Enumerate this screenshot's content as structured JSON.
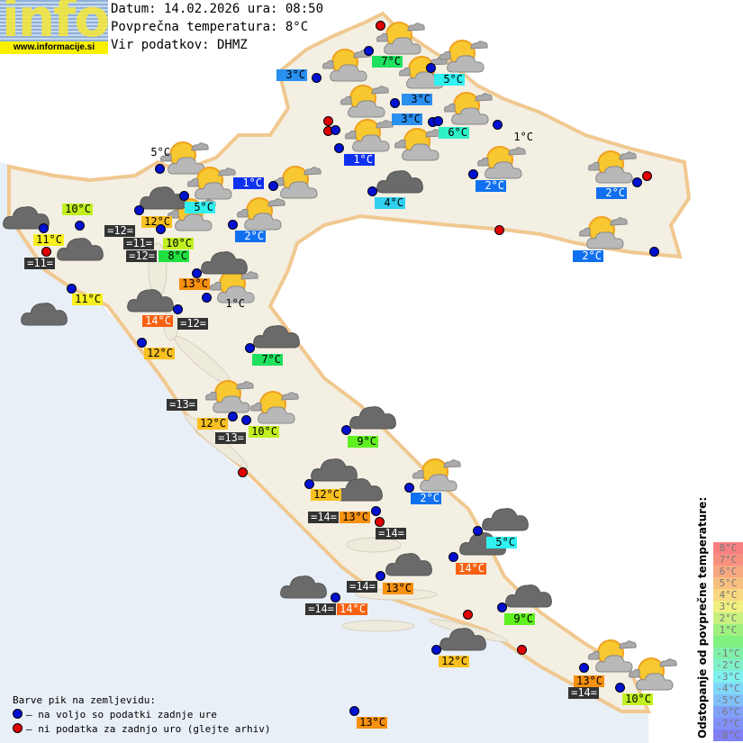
{
  "logo": {
    "word": "info",
    "url": "www.informacije.si"
  },
  "header": {
    "date_line": "Datum: 14.02.2026 ura: 08:50",
    "avg_temp_line": "Povprečna temperatura: 8°C",
    "source_line": "Vir podatkov: DHMZ"
  },
  "colors": {
    "map_land": "#f3efe3",
    "sea": "#e6eef6",
    "border": "#f0c890",
    "dot_available": "#0010d0",
    "dot_missing": "#e00000",
    "sea_temp_bg": "#333333"
  },
  "dots": [
    "missing",
    "available",
    "available",
    "available",
    "available",
    "available",
    "available",
    "missing",
    "missing",
    "available",
    "available",
    "available",
    "available",
    "available",
    "available",
    "available",
    "missing",
    "available",
    "missing",
    "available",
    "available",
    "available",
    "available",
    "available",
    "available",
    "available",
    "missing",
    "available",
    "available",
    "available",
    "available",
    "available",
    "available",
    "available",
    "available",
    "available",
    "missing",
    "available",
    "available",
    "available",
    "missing",
    "available",
    "available",
    "available",
    "available",
    "available",
    "missing",
    "missing",
    "available",
    "available",
    "available",
    "available"
  ],
  "labels": [
    {
      "text": "7°C",
      "bg": "#20e060"
    },
    {
      "text": "3°C",
      "bg": "#2a90f0"
    },
    {
      "text": "5°C",
      "bg": "#30f0f0"
    },
    {
      "text": "3°C",
      "bg": "#2a90f0"
    },
    {
      "text": "3°C",
      "bg": "#2a90f0"
    },
    {
      "text": "6°C",
      "bg": "#30f0c8"
    },
    {
      "text": "1°C",
      "bg": "#1030f0"
    },
    {
      "text": "1°C",
      "bg": ""
    },
    {
      "text": "1°C",
      "bg": "#1030f0"
    },
    {
      "text": "4°C",
      "bg": "#30d0f0"
    },
    {
      "text": "2°C",
      "bg": "#1070f0"
    },
    {
      "text": "2°C",
      "bg": "#1070f0"
    },
    {
      "text": "2°C",
      "bg": "#1070f0"
    },
    {
      "text": "2°C",
      "bg": "#1070f0"
    },
    {
      "text": "5°C",
      "bg": ""
    },
    {
      "text": "5°C",
      "bg": "#30f0f0"
    },
    {
      "text": "12°C",
      "bg": "#f8c020"
    },
    {
      "text": "=12=",
      "bg": "#333333"
    },
    {
      "text": "10°C",
      "bg": "#c0f020"
    },
    {
      "text": "10°C",
      "bg": "#c0f020"
    },
    {
      "text": "=11=",
      "bg": "#333333"
    },
    {
      "text": "8°C",
      "bg": "#20e040"
    },
    {
      "text": "=12=",
      "bg": "#333333"
    },
    {
      "text": "11°C",
      "bg": "#f8f020"
    },
    {
      "text": "=11=",
      "bg": "#333333"
    },
    {
      "text": "11°C",
      "bg": "#f8f020"
    },
    {
      "text": "13°C",
      "bg": "#f89010"
    },
    {
      "text": "1°C",
      "bg": ""
    },
    {
      "text": "14°C",
      "bg": "#f86010"
    },
    {
      "text": "=12=",
      "bg": "#333333"
    },
    {
      "text": "12°C",
      "bg": "#f8c020"
    },
    {
      "text": "7°C",
      "bg": "#20e060"
    },
    {
      "text": "=13=",
      "bg": "#333333"
    },
    {
      "text": "12°C",
      "bg": "#f8c020"
    },
    {
      "text": "10°C",
      "bg": "#c0f020"
    },
    {
      "text": "=13=",
      "bg": "#333333"
    },
    {
      "text": "9°C",
      "bg": "#60f020"
    },
    {
      "text": "12°C",
      "bg": "#f8c020"
    },
    {
      "text": "2°C",
      "bg": "#1070f0"
    },
    {
      "text": "=14=",
      "bg": "#333333"
    },
    {
      "text": "13°C",
      "bg": "#f89010"
    },
    {
      "text": "=14=",
      "bg": "#333333"
    },
    {
      "text": "14°C",
      "bg": "#f86010"
    },
    {
      "text": "=14=",
      "bg": "#333333"
    },
    {
      "text": "13°C",
      "bg": "#f89010"
    },
    {
      "text": "=14=",
      "bg": "#333333"
    },
    {
      "text": "14°C",
      "bg": "#f86010"
    },
    {
      "text": "9°C",
      "bg": "#60f020"
    },
    {
      "text": "12°C",
      "bg": "#f8c020"
    },
    {
      "text": "13°C",
      "bg": "#f89010"
    },
    {
      "text": "=14=",
      "bg": "#333333"
    },
    {
      "text": "10°C",
      "bg": "#c0f020"
    },
    {
      "text": "13°C",
      "bg": "#f89010"
    },
    {
      "text": "5°C",
      "bg": "#30f0f0"
    }
  ],
  "icons": {
    "partly": "partly-cloudy-icon",
    "cloud": "cloudy-icon"
  },
  "legend": {
    "title": "Barve pik na zemljevidu:",
    "available": "– na voljo so podatki zadnje ure",
    "missing": "– ni podatka za zadnjo uro (glejte arhiv)"
  },
  "scale": {
    "title": "Odstopanje od povprečne temperature:",
    "steps": [
      {
        "text": "8°C",
        "bg": "#f88080"
      },
      {
        "text": "7°C",
        "bg": "#f89080"
      },
      {
        "text": "6°C",
        "bg": "#f8a880"
      },
      {
        "text": "5°C",
        "bg": "#f8c080"
      },
      {
        "text": "4°C",
        "bg": "#f8d880"
      },
      {
        "text": "3°C",
        "bg": "#f0f080"
      },
      {
        "text": "2°C",
        "bg": "#c8f080"
      },
      {
        "text": "1°C",
        "bg": "#a0f080"
      },
      {
        "text": "",
        "bg": "#80f080"
      },
      {
        "text": "-1°C",
        "bg": "#80f0a8"
      },
      {
        "text": "-2°C",
        "bg": "#80f0c8"
      },
      {
        "text": "-3°C",
        "bg": "#80f0f0"
      },
      {
        "text": "-4°C",
        "bg": "#80d8f8"
      },
      {
        "text": "-5°C",
        "bg": "#80c0f8"
      },
      {
        "text": "-6°C",
        "bg": "#80a0f8"
      },
      {
        "text": "-7°C",
        "bg": "#8090f8"
      },
      {
        "text": "-8°C",
        "bg": "#8080f8"
      }
    ]
  }
}
